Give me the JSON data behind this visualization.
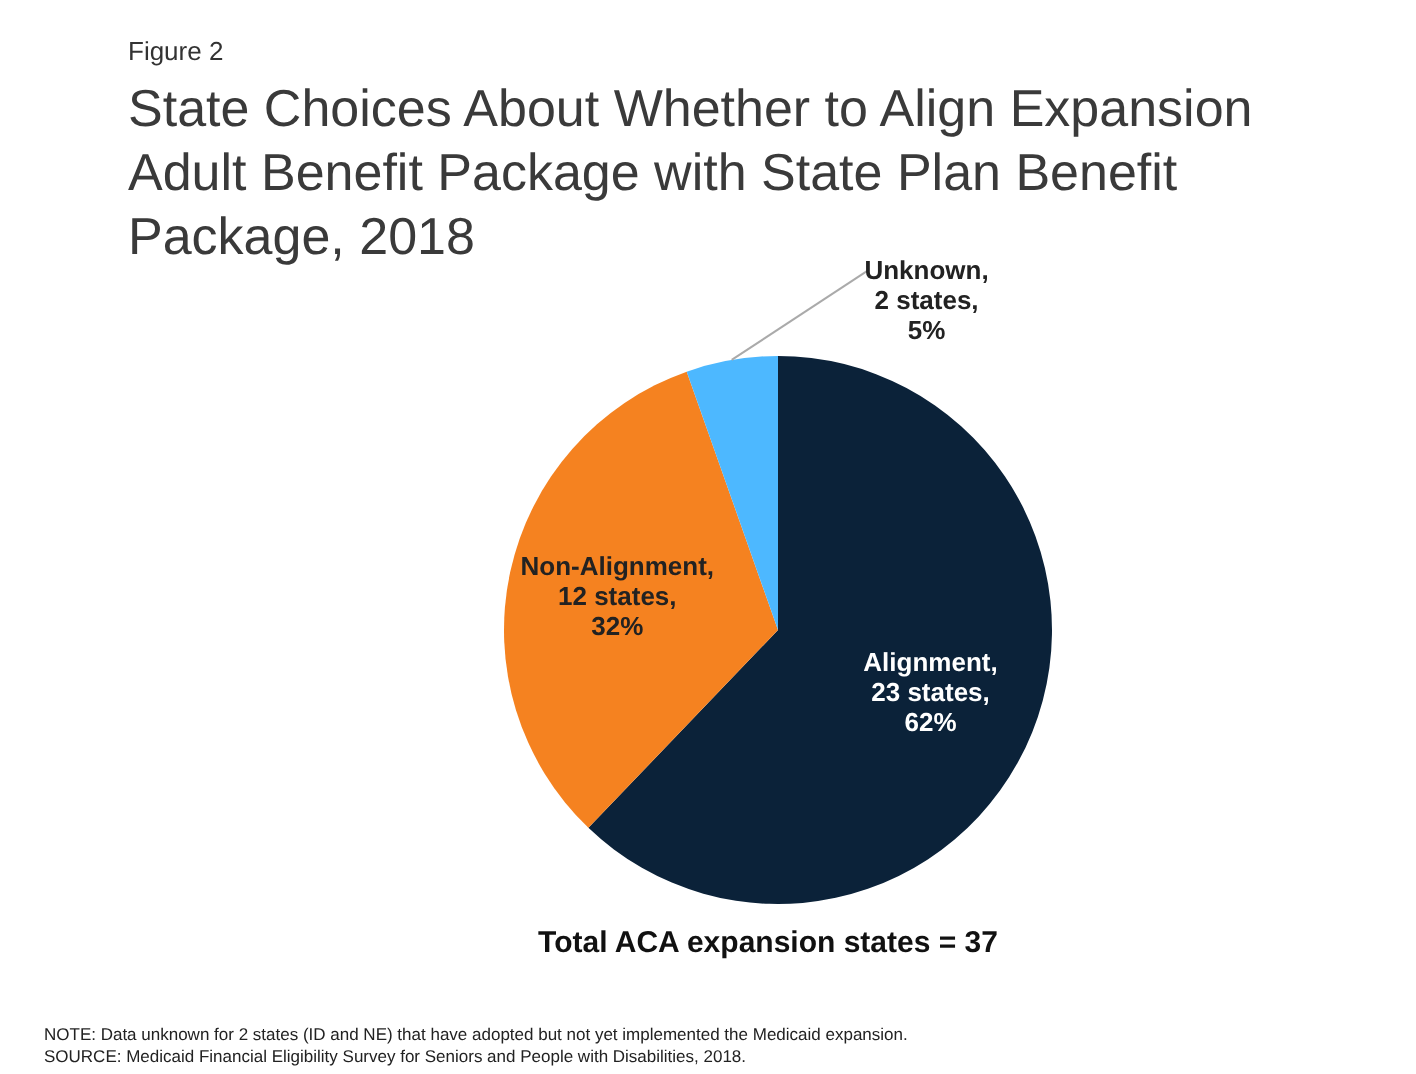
{
  "chart_data": {
    "type": "pie",
    "title": "State Choices About Whether to Align Expansion Adult Benefit Package with State Plan Benefit Package, 2018",
    "categories": [
      "Alignment",
      "Non-Alignment",
      "Unknown"
    ],
    "values": [
      23,
      12,
      2
    ],
    "value_labels": [
      ",\n23 states,\n62%",
      ",\n12 states,\n32%",
      ",\n2 states,\n5%"
    ],
    "colors": [
      "#0b2239",
      "#f58220",
      "#4db8ff"
    ],
    "legend": false,
    "annotations": [
      "Figure 2",
      "Total ACA expansion states = 37",
      "NOTE:  Data unknown for 2 states (ID and NE) that have adopted but not yet implemented the Medicaid expansion.",
      "SOURCE: Medicaid Financial Eligibility Survey for Seniors and People with Disabilities, 2018."
    ]
  }
}
